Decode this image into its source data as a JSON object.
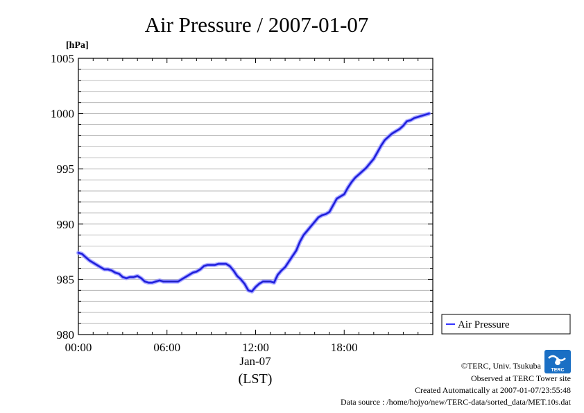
{
  "chart_data": {
    "type": "line",
    "title": "Air Pressure / 2007-01-07",
    "ylabel": "[hPa]",
    "xlabel": "(LST)",
    "date_label": "Jan-07",
    "ylim": [
      980,
      1005
    ],
    "y_ticks": [
      "980",
      "985",
      "990",
      "995",
      "1000",
      "1005"
    ],
    "xlim_hours": [
      0,
      24
    ],
    "x_ticks": [
      {
        "hour": 0,
        "label": "00:00"
      },
      {
        "hour": 6,
        "label": "06:00"
      },
      {
        "hour": 12,
        "label": "12:00"
      },
      {
        "hour": 18,
        "label": "18:00"
      }
    ],
    "grid": true,
    "legend_position": "right",
    "series": [
      {
        "name": "Air Pressure",
        "color": "#3333ff",
        "x_hours": [
          0.0,
          0.25,
          0.5,
          0.75,
          1.0,
          1.25,
          1.5,
          1.75,
          2.0,
          2.25,
          2.5,
          2.75,
          3.0,
          3.25,
          3.5,
          3.75,
          4.0,
          4.25,
          4.5,
          4.75,
          5.0,
          5.25,
          5.5,
          5.75,
          6.0,
          6.25,
          6.5,
          6.75,
          7.0,
          7.25,
          7.5,
          7.75,
          8.0,
          8.25,
          8.5,
          8.75,
          9.0,
          9.25,
          9.5,
          9.75,
          10.0,
          10.25,
          10.5,
          10.75,
          11.0,
          11.25,
          11.5,
          11.75,
          12.0,
          12.25,
          12.5,
          12.75,
          13.0,
          13.25,
          13.5,
          13.75,
          14.0,
          14.25,
          14.5,
          14.75,
          15.0,
          15.25,
          15.5,
          15.75,
          16.0,
          16.25,
          16.5,
          16.75,
          17.0,
          17.25,
          17.5,
          17.75,
          18.0,
          18.25,
          18.5,
          18.75,
          19.0,
          19.25,
          19.5,
          19.75,
          20.0,
          20.25,
          20.5,
          20.75,
          21.0,
          21.25,
          21.5,
          21.75,
          22.0,
          22.25,
          22.5,
          22.75,
          23.0,
          23.25,
          23.5,
          23.75
        ],
        "values": [
          987.4,
          987.3,
          987.0,
          986.7,
          986.5,
          986.3,
          986.1,
          985.9,
          985.9,
          985.8,
          985.6,
          985.5,
          985.2,
          985.1,
          985.2,
          985.2,
          985.3,
          985.1,
          984.8,
          984.7,
          984.7,
          984.8,
          984.9,
          984.8,
          984.8,
          984.8,
          984.8,
          984.8,
          985.0,
          985.2,
          985.4,
          985.6,
          985.7,
          985.9,
          986.2,
          986.3,
          986.3,
          986.3,
          986.4,
          986.4,
          986.4,
          986.2,
          985.8,
          985.3,
          985.0,
          984.6,
          984.0,
          983.9,
          984.3,
          984.6,
          984.8,
          984.8,
          984.8,
          984.7,
          985.4,
          985.8,
          986.1,
          986.6,
          987.1,
          987.6,
          988.4,
          989.0,
          989.4,
          989.8,
          990.2,
          990.6,
          990.8,
          990.9,
          991.1,
          991.7,
          992.3,
          992.5,
          992.7,
          993.3,
          993.8,
          994.2,
          994.5,
          994.8,
          995.1,
          995.5,
          995.9,
          996.5,
          997.1,
          997.6,
          997.9,
          998.2,
          998.4,
          998.6,
          998.9,
          999.3,
          999.4,
          999.6,
          999.7,
          999.8,
          999.9,
          1000.0
        ]
      }
    ]
  },
  "footer": {
    "copyright": "©TERC, Univ. Tsukuba",
    "observed": "Observed at TERC Tower site",
    "created": "Created Automatically at 2007-01-07/23:55:48",
    "source": "Data source : /home/hojyo/new/TERC-data/sorted_data/MET.10s.dat",
    "logo_text": "TERC",
    "logo_color": "#1a6fc4"
  }
}
